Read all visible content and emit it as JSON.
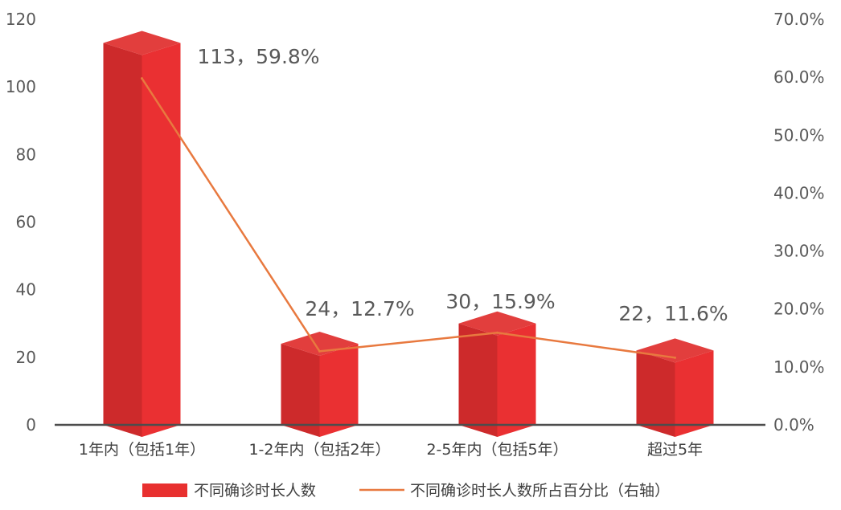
{
  "chart_data": {
    "type": "bar",
    "categories": [
      "1年内（包括1年）",
      "1-2年内（包括2年）",
      "2-5年内（包括5年）",
      "超过5年"
    ],
    "series": [
      {
        "name": "不同确诊时长人数",
        "type": "bar",
        "axis": "left",
        "values": [
          113,
          24,
          30,
          22
        ],
        "color": "#e8302f"
      },
      {
        "name": "不同确诊时长人数所占百分比（右轴）",
        "type": "line",
        "axis": "right",
        "values": [
          59.8,
          12.7,
          15.9,
          11.6
        ],
        "color": "#e8793f"
      }
    ],
    "data_labels": [
      "113，59.8%",
      "24，12.7%",
      "30，15.9%",
      "22，11.6%"
    ],
    "y_left": {
      "ylim": [
        0,
        120
      ],
      "ticks": [
        "0",
        "20",
        "40",
        "60",
        "80",
        "100",
        "120"
      ]
    },
    "y_right": {
      "ylim": [
        0,
        70
      ],
      "ticks": [
        "0.0%",
        "10.0%",
        "20.0%",
        "30.0%",
        "40.0%",
        "50.0%",
        "60.0%",
        "70.0%"
      ]
    },
    "grid": false,
    "legend_position": "bottom",
    "bar_style": "3d"
  }
}
